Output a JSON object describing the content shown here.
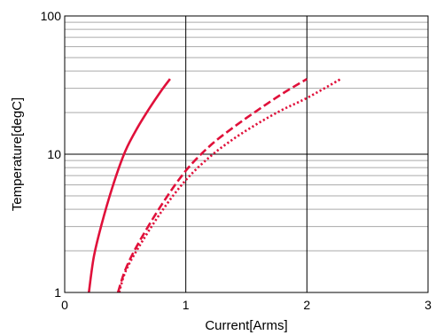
{
  "chart_data": {
    "type": "line",
    "title": "",
    "xlabel": "Current[Arms]",
    "ylabel": "Temperature[degC]",
    "xlim": [
      0,
      3
    ],
    "ylim": [
      1,
      100
    ],
    "yscale": "log",
    "x_ticks": [
      "0",
      "1",
      "2",
      "3"
    ],
    "y_ticks": [
      "1",
      "10",
      "100"
    ],
    "grid": true,
    "legend": "none",
    "series": [
      {
        "style": "solid",
        "color": "#e0103a",
        "x": [
          0.2,
          0.24,
          0.3,
          0.4,
          0.5,
          0.6,
          0.7,
          0.8,
          0.87
        ],
        "y": [
          1.0,
          1.8,
          3.0,
          6.0,
          10.5,
          15.5,
          21.5,
          29.0,
          35.0
        ]
      },
      {
        "style": "dashed",
        "color": "#e0103a",
        "x": [
          0.44,
          0.5,
          0.6,
          0.8,
          1.0,
          1.2,
          1.4,
          1.6,
          1.8,
          2.0
        ],
        "y": [
          1.0,
          1.45,
          2.2,
          4.3,
          7.6,
          11.5,
          15.8,
          21.0,
          27.5,
          35.0
        ]
      },
      {
        "style": "dotted",
        "color": "#e0103a",
        "x": [
          0.45,
          0.5,
          0.6,
          0.8,
          1.0,
          1.2,
          1.4,
          1.6,
          1.8,
          2.0,
          2.28
        ],
        "y": [
          1.0,
          1.4,
          2.05,
          3.85,
          6.5,
          9.6,
          13.0,
          16.8,
          21.0,
          25.5,
          35.0
        ]
      }
    ]
  }
}
